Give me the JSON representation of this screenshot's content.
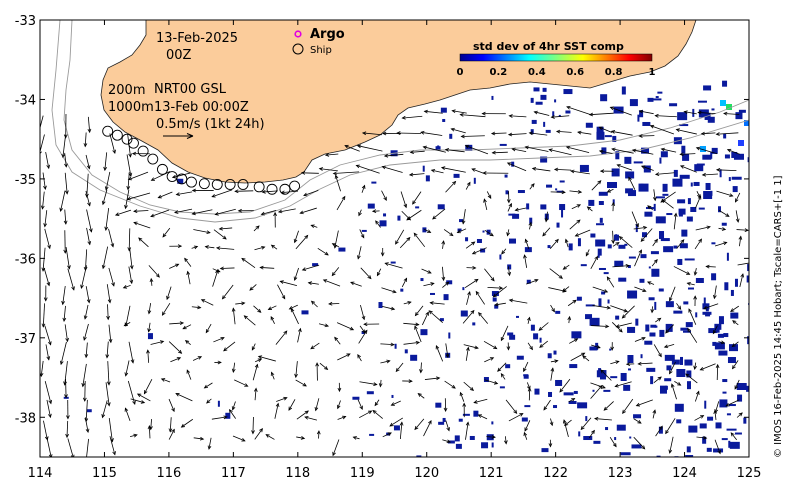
{
  "map": {
    "date": "13-Feb-2025",
    "time": "00Z",
    "legend": {
      "argo_label": "Argo",
      "ship_label": "Ship"
    },
    "contours_label_200": "200m",
    "contours_label_1000": "1000m",
    "product_label": "NRT00 GSL",
    "product_time": "13-Feb 00:00Z",
    "vector_scale_label": "0.5m/s (1kt 24h)",
    "credit": "© IMOS 16-Feb-2025 14:45 Hobart; Tscale=CARS+[-1 1]",
    "colors": {
      "land": "#fbcc9b",
      "sst_blue": "#0a1a9c",
      "argo": "#e000e0"
    }
  },
  "colorbar": {
    "title": "std dev of 4hr SST comp",
    "tick_labels": [
      "0",
      "0.2",
      "0.4",
      "0.6",
      "0.8",
      "1"
    ],
    "colormap": "jet"
  },
  "chart_data": {
    "type": "map",
    "x_ticks": [
      "114",
      "115",
      "116",
      "117",
      "118",
      "119",
      "120",
      "121",
      "122",
      "123",
      "124",
      "125"
    ],
    "y_ticks": [
      "-33",
      "-34",
      "-35",
      "-36",
      "-37",
      "-38"
    ],
    "xlim": [
      114,
      125
    ],
    "ylim": [
      -38.5,
      -33
    ],
    "ship_track": [
      [
        115.05,
        -34.4
      ],
      [
        115.2,
        -34.45
      ],
      [
        115.35,
        -34.5
      ],
      [
        115.45,
        -34.55
      ],
      [
        115.6,
        -34.65
      ],
      [
        115.75,
        -34.75
      ],
      [
        115.9,
        -34.88
      ],
      [
        116.05,
        -34.97
      ],
      [
        116.2,
        -35.0
      ],
      [
        116.35,
        -35.04
      ],
      [
        116.55,
        -35.06
      ],
      [
        116.75,
        -35.07
      ],
      [
        116.95,
        -35.07
      ],
      [
        117.15,
        -35.07
      ],
      [
        117.4,
        -35.1
      ],
      [
        117.6,
        -35.13
      ],
      [
        117.8,
        -35.13
      ],
      [
        117.95,
        -35.09
      ]
    ]
  }
}
